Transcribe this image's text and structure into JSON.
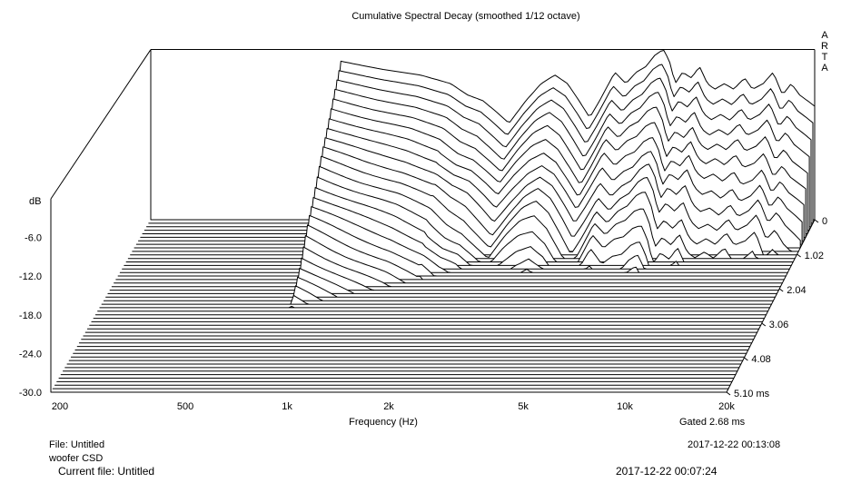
{
  "chart_data": {
    "type": "waterfall",
    "title": "Cumulative Spectral Decay (smoothed 1/12 octave)",
    "xlabel": "Frequency (Hz)",
    "x_scale": "log",
    "xlim": [
      200,
      20000
    ],
    "x_ticks": [
      "200",
      "500",
      "1k",
      "2k",
      "5k",
      "10k",
      "20k"
    ],
    "x_tick_values": [
      200,
      500,
      1000,
      2000,
      5000,
      10000,
      20000
    ],
    "ylabel": "dB",
    "ylim": [
      -30,
      0
    ],
    "y_ticks": [
      "-6.0",
      "-12.0",
      "-18.0",
      "-24.0",
      "-30.0"
    ],
    "y_tick_values": [
      -6,
      -12,
      -18,
      -24,
      -30
    ],
    "z_ticks": [
      "0",
      "1.02",
      "2.04",
      "3.06",
      "4.08",
      "5.10 ms"
    ],
    "z_tick_values": [
      0,
      1.02,
      2.04,
      3.06,
      4.08,
      5.1
    ],
    "zlim_ms": [
      0,
      5.1
    ],
    "slice_count": 50,
    "grid": false,
    "brand_label": "ARTA",
    "gated_label": "Gated 2.68 ms",
    "envelope_db": {
      "freq_hz": [
        200,
        700,
        740,
        900,
        1000,
        1300,
        1600,
        1800,
        2000,
        2200,
        2400,
        2700,
        3000,
        3300,
        3600,
        3900,
        4200,
        4500,
        5000,
        5400,
        5800,
        6200,
        6600,
        7000,
        7300,
        7600,
        8000,
        8500,
        9000,
        9500,
        10000,
        10700,
        11400,
        12300,
        13000,
        14000,
        15000,
        16000,
        17000,
        18000,
        19000,
        20000
      ],
      "db": [
        -31,
        -31,
        -2,
        -3,
        -3.5,
        -4.5,
        -6,
        -8,
        -9,
        -11,
        -13,
        -9,
        -6,
        -4.5,
        -6,
        -9,
        -12,
        -9,
        -4,
        -6,
        -4,
        -3,
        -1,
        0,
        -2,
        -6,
        -4,
        -5,
        -3,
        -6,
        -7,
        -6,
        -7,
        -5,
        -7,
        -6,
        -4,
        -8,
        -6,
        -8,
        -9,
        -10
      ]
    }
  },
  "footer": {
    "file_label": "File: Untitled",
    "description": "woofer CSD",
    "timestamp": "2017-12-22  00:13:08",
    "ghost_file_label": "Current file: Untitled",
    "ghost_timestamp": "2017-12-22  00:07:24"
  }
}
